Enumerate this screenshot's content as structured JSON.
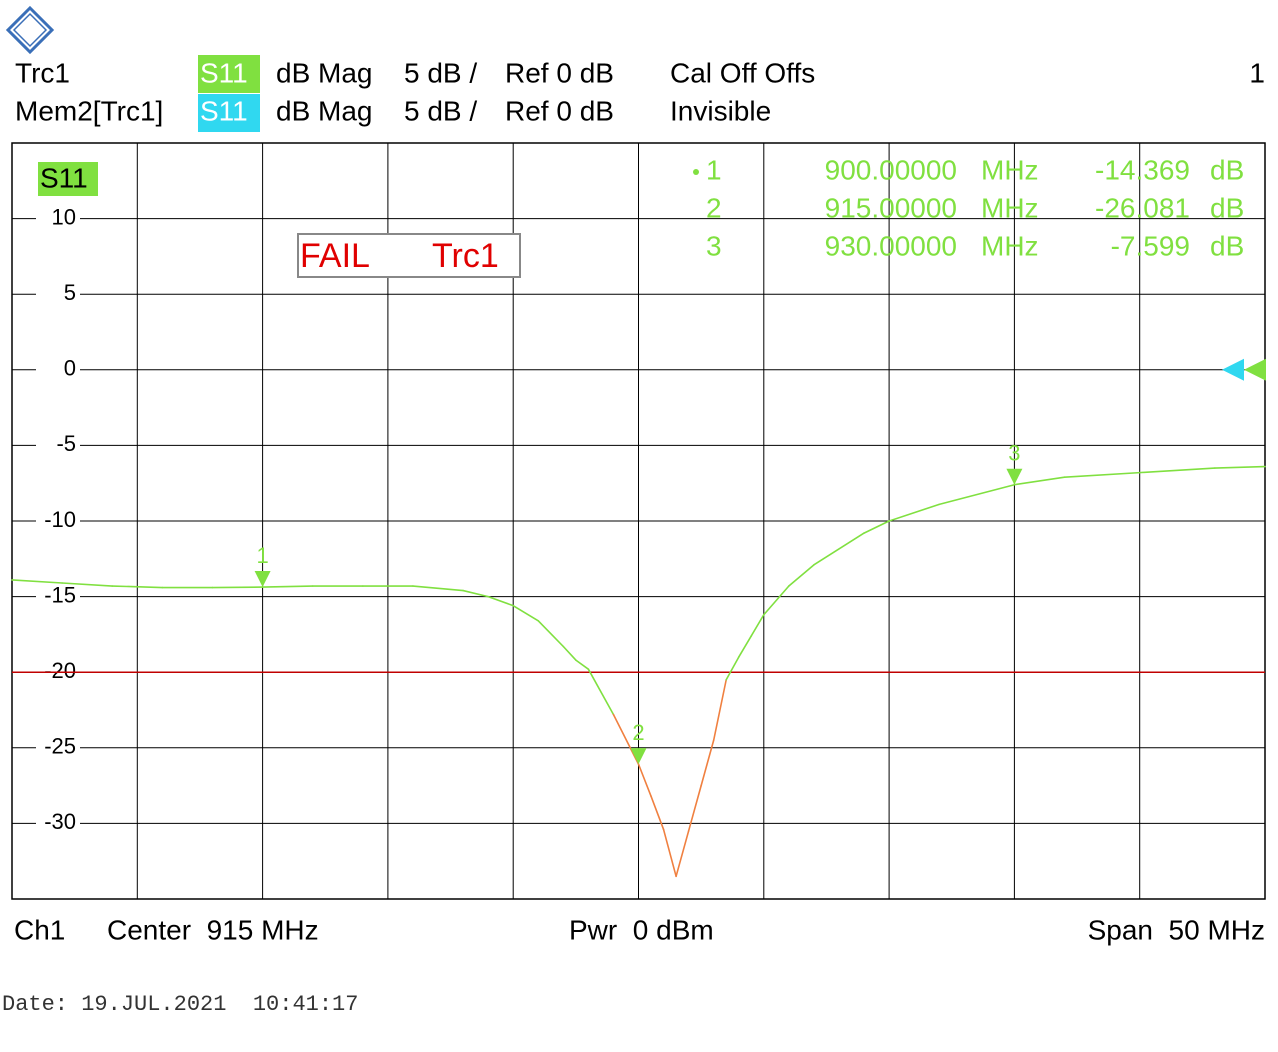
{
  "header": {
    "rows": [
      {
        "trace": "Trc1",
        "param": "S11",
        "format": "dB Mag",
        "scale": "5 dB /",
        "ref": "Ref 0 dB",
        "status": "Cal Off Offs",
        "channel": "1"
      },
      {
        "trace": "Mem2[Trc1]",
        "param": "S11",
        "format": "dB Mag",
        "scale": "5 dB /",
        "ref": "Ref 0 dB",
        "status": "Invisible"
      }
    ]
  },
  "chart_data": {
    "type": "line",
    "trace_label": "S11",
    "limit_status": "FAIL",
    "limit_trace": "Trc1",
    "xlim": [
      890,
      940
    ],
    "ylim": [
      -35,
      15
    ],
    "yticks": [
      10,
      5,
      0,
      -5,
      -10,
      -15,
      -20,
      -25,
      -30
    ],
    "grid": true,
    "ref_level": 0,
    "limit": {
      "value": -20,
      "color": "#c00000"
    },
    "color": "#80e040",
    "fail_color": "#f08040",
    "mem_color": "#30d8f0",
    "x": [
      890,
      892,
      894,
      896,
      898,
      900,
      902,
      904,
      906,
      908,
      909,
      910,
      911,
      912,
      912.5,
      913,
      914,
      915,
      915.5,
      916,
      916.5,
      917,
      917.5,
      918,
      918.5,
      919,
      919.5,
      920,
      921,
      922,
      924,
      925,
      927,
      930,
      932,
      935,
      938,
      940
    ],
    "values": [
      -13.9,
      -14.1,
      -14.3,
      -14.4,
      -14.4,
      -14.37,
      -14.3,
      -14.3,
      -14.3,
      -14.6,
      -15.0,
      -15.6,
      -16.6,
      -18.3,
      -19.2,
      -19.8,
      -22.8,
      -26.08,
      -28.2,
      -30.4,
      -33.5,
      -30.5,
      -27.5,
      -24.5,
      -20.5,
      -19.0,
      -17.6,
      -16.2,
      -14.3,
      -12.9,
      -10.8,
      -10.0,
      -8.9,
      -7.6,
      -7.1,
      -6.8,
      -6.5,
      -6.4
    ],
    "markers": [
      {
        "label": "1",
        "x": 900,
        "x_label": "900.00000",
        "x_unit": "MHz",
        "y": -14.369,
        "y_label": "-14.369",
        "y_unit": "dB"
      },
      {
        "label": "2",
        "x": 915,
        "x_label": "915.00000",
        "x_unit": "MHz",
        "y": -26.081,
        "y_label": "-26.081",
        "y_unit": "dB"
      },
      {
        "label": "3",
        "x": 930,
        "x_label": "930.00000",
        "x_unit": "MHz",
        "y": -7.599,
        "y_label": "-7.599",
        "y_unit": "dB"
      }
    ]
  },
  "footer": {
    "channel": "Ch1",
    "center": "Center  915 MHz",
    "power": "Pwr  0 dBm",
    "span": "Span  50 MHz",
    "date": "Date: 19.JUL.2021  10:41:17"
  }
}
